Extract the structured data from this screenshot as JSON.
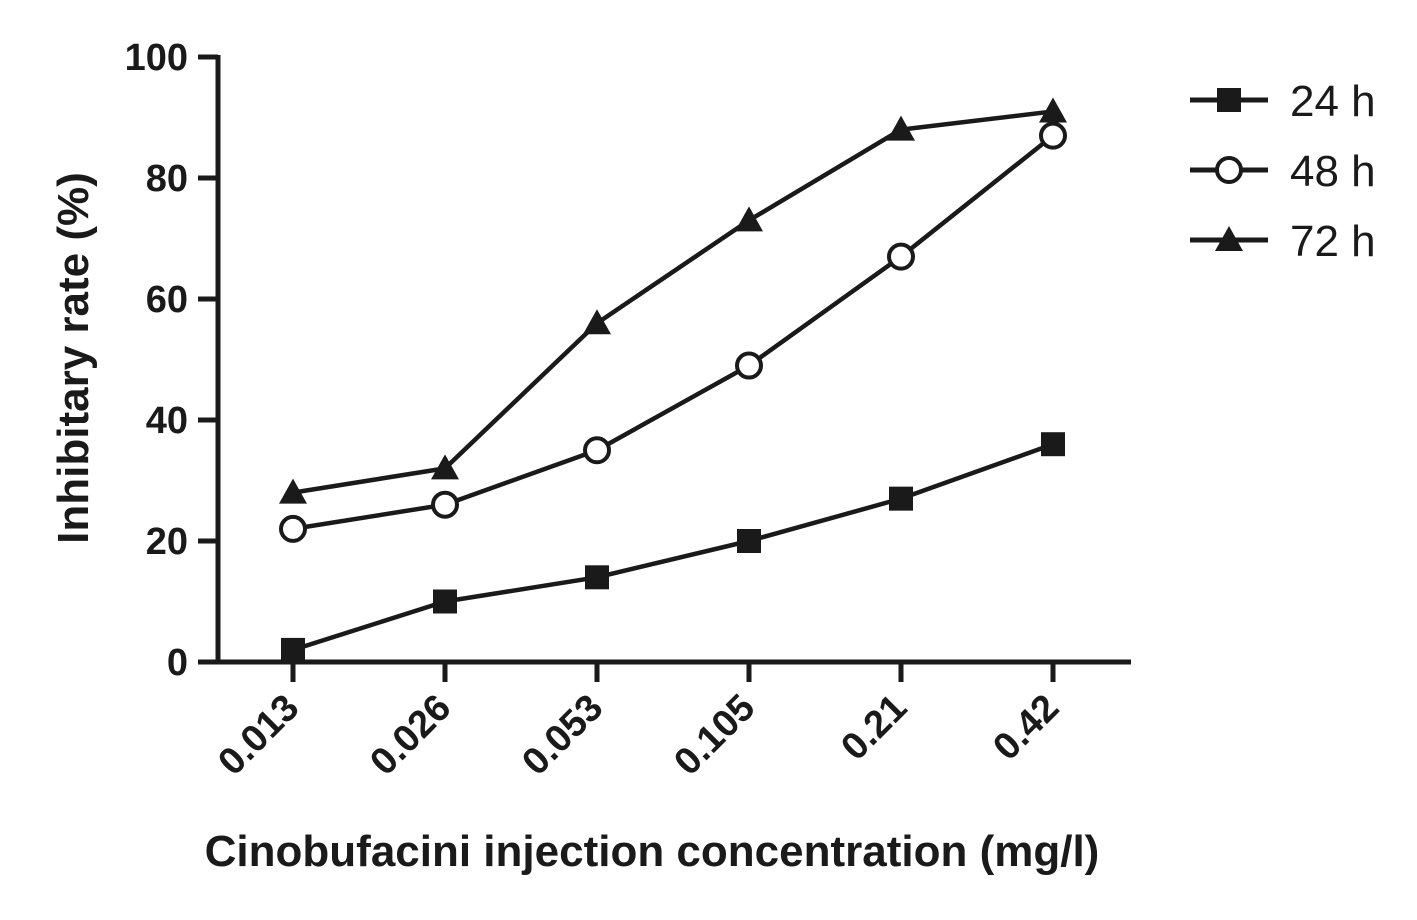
{
  "chart_data": {
    "type": "line",
    "categories": [
      "0.013",
      "0.026",
      "0.053",
      "0.105",
      "0.21",
      "0.42"
    ],
    "xlabel": "Cinobufacini injection concentration (mg/l)",
    "ylabel": "Inhibitary rate (%)",
    "ylim": [
      0,
      100
    ],
    "yticks": [
      "0",
      "20",
      "40",
      "60",
      "80",
      "100"
    ],
    "grid": false,
    "legend_position": "top-right",
    "series": [
      {
        "name": "24 h",
        "marker": "square",
        "values": [
          2,
          10,
          14,
          20,
          27,
          36
        ]
      },
      {
        "name": "48 h",
        "marker": "open-circle",
        "values": [
          22,
          26,
          35,
          49,
          67,
          87
        ]
      },
      {
        "name": "72 h",
        "marker": "triangle",
        "values": [
          28,
          32,
          56,
          73,
          88,
          91
        ]
      }
    ],
    "colors": {
      "line": "#1a1a1a",
      "background": "#ffffff"
    }
  }
}
